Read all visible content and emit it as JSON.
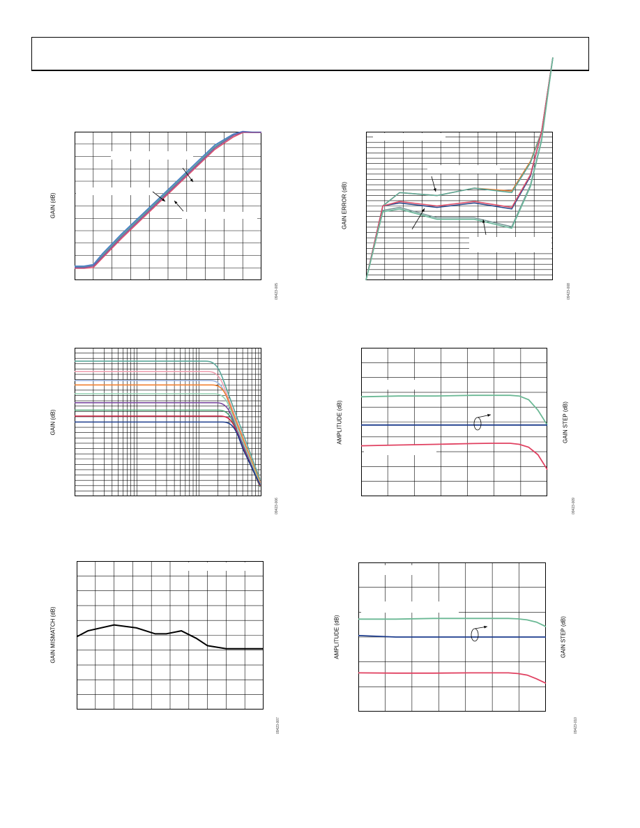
{
  "chart_data": [
    {
      "id": "gain-vs-vgain",
      "type": "line",
      "ylabel": "GAIN (dB)",
      "figure_id": "09423-005",
      "x": [
        0,
        0.05,
        0.1,
        0.15,
        0.25,
        0.35,
        0.45,
        0.55,
        0.65,
        0.75,
        0.85,
        0.9,
        0.95,
        1.0
      ],
      "series": [
        {
          "color": "#5aa89a",
          "values": [
            0.91,
            0.91,
            0.9,
            0.83,
            0.7,
            0.58,
            0.46,
            0.34,
            0.22,
            0.1,
            0.02,
            0.0,
            0.005,
            0.005
          ]
        },
        {
          "color": "#e0506a",
          "values": [
            0.92,
            0.92,
            0.915,
            0.85,
            0.72,
            0.6,
            0.48,
            0.36,
            0.24,
            0.12,
            0.035,
            0.005,
            0.005,
            0.005
          ]
        },
        {
          "color": "#4a7ec8",
          "values": [
            0.905,
            0.905,
            0.895,
            0.82,
            0.69,
            0.57,
            0.45,
            0.33,
            0.21,
            0.09,
            0.015,
            -0.002,
            0.003,
            0.003
          ]
        },
        {
          "color": "#7c5aa0",
          "values": [
            0.915,
            0.915,
            0.905,
            0.84,
            0.71,
            0.59,
            0.47,
            0.35,
            0.23,
            0.11,
            0.025,
            0.002,
            0.004,
            0.004
          ]
        }
      ]
    },
    {
      "id": "gain-error",
      "type": "line",
      "ylabel": "GAIN ERROR (dB)",
      "figure_id": "09423-008",
      "x": [
        0.0,
        0.09,
        0.18,
        0.38,
        0.58,
        0.78,
        0.88,
        0.94,
        1.0
      ],
      "series": [
        {
          "color": "#e07830",
          "values": [
            1.0,
            0.5,
            0.41,
            0.43,
            0.38,
            0.4,
            0.2,
            0.0,
            -0.5
          ]
        },
        {
          "color": "#5aa89a",
          "values": [
            1.0,
            0.5,
            0.41,
            0.43,
            0.38,
            0.41,
            0.21,
            0.0,
            -0.5
          ]
        },
        {
          "color": "#2a4a8c",
          "values": [
            1.0,
            0.5,
            0.48,
            0.51,
            0.48,
            0.52,
            0.3,
            0.0,
            -0.5
          ]
        },
        {
          "color": "#e0506a",
          "values": [
            1.0,
            0.5,
            0.47,
            0.5,
            0.47,
            0.51,
            0.29,
            0.0,
            -0.5
          ]
        },
        {
          "color": "#7a9a9a",
          "values": [
            1.0,
            0.53,
            0.51,
            0.58,
            0.58,
            0.64,
            0.36,
            0.05,
            -0.5
          ]
        },
        {
          "color": "#6ab89a",
          "values": [
            1.0,
            0.54,
            0.52,
            0.59,
            0.59,
            0.65,
            0.37,
            0.06,
            -0.5
          ]
        }
      ]
    },
    {
      "id": "gain-vs-frequency",
      "type": "line",
      "ylabel": "GAIN (dB)",
      "figure_id": "09423-006",
      "series": [
        {
          "color": "#5aa89a",
          "level": 0.09
        },
        {
          "color": "#f0a0b0",
          "level": 0.16
        },
        {
          "color": "#a0b8e0",
          "level": 0.22
        },
        {
          "color": "#f08030",
          "level": 0.25
        },
        {
          "color": "#90d0b0",
          "level": 0.31
        },
        {
          "color": "#7a4aa0",
          "level": 0.37
        },
        {
          "color": "#4aa070",
          "level": 0.42
        },
        {
          "color": "#d02040",
          "level": 0.46
        },
        {
          "color": "#1a3a8c",
          "level": 0.5
        }
      ]
    },
    {
      "id": "amplitude-gain-step",
      "type": "line",
      "ylabel": "AMPLITUDE (dB)",
      "ylabel_right": "GAIN STEP (dB)",
      "figure_id": "09423-009",
      "x": [
        0,
        0.2,
        0.4,
        0.6,
        0.7,
        0.8,
        0.85,
        0.9,
        0.95,
        1.0
      ],
      "series": [
        {
          "color": "#6ab894",
          "values": [
            0.33,
            0.325,
            0.325,
            0.32,
            0.32,
            0.32,
            0.325,
            0.35,
            0.42,
            0.52
          ]
        },
        {
          "color": "#1a3a8c",
          "values": [
            0.52,
            0.52,
            0.52,
            0.52,
            0.52,
            0.52,
            0.52,
            0.52,
            0.52,
            0.52
          ]
        },
        {
          "color": "#e04060",
          "values": [
            0.66,
            0.655,
            0.65,
            0.645,
            0.643,
            0.643,
            0.65,
            0.67,
            0.72,
            0.82
          ]
        }
      ]
    },
    {
      "id": "gain-mismatch",
      "type": "line",
      "ylabel": "GAIN MISMATCH (dB)",
      "figure_id": "09423-007",
      "x": [
        0,
        0.06,
        0.2,
        0.32,
        0.42,
        0.48,
        0.56,
        0.64,
        0.7,
        0.8,
        0.9,
        1.0
      ],
      "series": [
        {
          "color": "#000000",
          "values": [
            0.51,
            0.47,
            0.43,
            0.45,
            0.49,
            0.49,
            0.47,
            0.52,
            0.57,
            0.59,
            0.59,
            0.59
          ]
        }
      ]
    },
    {
      "id": "amplitude-gain-step-2",
      "type": "line",
      "ylabel": "AMPLITUDE (dB)",
      "ylabel_right": "GAIN STEP (dB)",
      "figure_id": "09423-010",
      "x": [
        0,
        0.2,
        0.4,
        0.6,
        0.7,
        0.8,
        0.85,
        0.9,
        0.95,
        1.0
      ],
      "series": [
        {
          "color": "#6ab894",
          "values": [
            0.38,
            0.38,
            0.375,
            0.375,
            0.375,
            0.375,
            0.378,
            0.385,
            0.4,
            0.43
          ]
        },
        {
          "color": "#1a3a8c",
          "values": [
            0.49,
            0.5,
            0.5,
            0.5,
            0.5,
            0.5,
            0.5,
            0.5,
            0.5,
            0.5
          ]
        },
        {
          "color": "#e04060",
          "values": [
            0.74,
            0.742,
            0.742,
            0.74,
            0.74,
            0.74,
            0.745,
            0.755,
            0.78,
            0.81
          ]
        }
      ]
    }
  ]
}
